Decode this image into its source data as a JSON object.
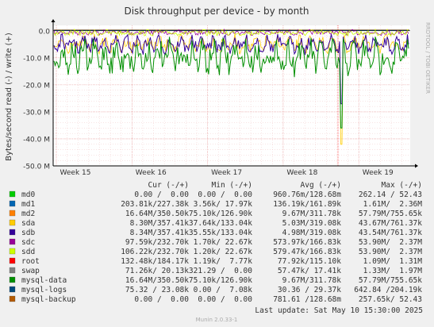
{
  "chart_data": {
    "type": "line",
    "title": "Disk throughput per device - by month",
    "ylabel": "Bytes/second read (-) / write (+)",
    "watermark": "RRDTOOL / TOBI OETIKER",
    "ylim": [
      -50000000,
      2000000
    ],
    "y_ticks": [
      {
        "value": 0,
        "label": "0.0"
      },
      {
        "value": -10000000,
        "label": "-10.0 M"
      },
      {
        "value": -20000000,
        "label": "-20.0 M"
      },
      {
        "value": -30000000,
        "label": "-30.0 M"
      },
      {
        "value": -40000000,
        "label": "-40.0 M"
      },
      {
        "value": -50000000,
        "label": "-50.0 M"
      }
    ],
    "x_ticks": [
      "Week 15",
      "Week 16",
      "Week 17",
      "Week 18",
      "Week 19"
    ],
    "grid": true,
    "series": [
      {
        "name": "md0",
        "color": "#00cc00",
        "cur": "0.00 /  0.00",
        "min": "0.00 /  0.00",
        "avg": "960.76m/128.68m",
        "max": "262.14 / 52.43"
      },
      {
        "name": "md1",
        "color": "#0066b3",
        "cur": "203.81k/227.38k",
        "min": "3.56k/ 17.97k",
        "avg": "136.19k/161.89k",
        "max": "1.61M/  2.36M"
      },
      {
        "name": "md2",
        "color": "#ff8000",
        "cur": "16.64M/350.50k",
        "min": "75.10k/126.90k",
        "avg": "9.67M/311.78k",
        "max": "57.79M/755.65k"
      },
      {
        "name": "sda",
        "color": "#ffcc00",
        "cur": "8.30M/357.41k",
        "min": "37.64k/133.04k",
        "avg": "5.03M/319.08k",
        "max": "43.67M/761.37k"
      },
      {
        "name": "sdb",
        "color": "#330099",
        "cur": "8.34M/357.41k",
        "min": "35.55k/133.04k",
        "avg": "4.98M/319.08k",
        "max": "43.54M/761.37k"
      },
      {
        "name": "sdc",
        "color": "#990099",
        "cur": "97.59k/232.70k",
        "min": "1.70k/ 22.67k",
        "avg": "573.97k/166.83k",
        "max": "53.90M/  2.37M"
      },
      {
        "name": "sdd",
        "color": "#ccff00",
        "cur": "106.22k/232.70k",
        "min": "1.20k/ 22.67k",
        "avg": "579.47k/166.83k",
        "max": "53.90M/  2.37M"
      },
      {
        "name": "root",
        "color": "#ff0000",
        "cur": "132.48k/184.17k",
        "min": "1.19k/  7.77k",
        "avg": "77.92k/115.10k",
        "max": "1.09M/  1.31M"
      },
      {
        "name": "swap",
        "color": "#808080",
        "cur": "71.26k/ 20.13k",
        "min": "321.29 /  0.00",
        "avg": "57.47k/ 17.41k",
        "max": "1.33M/  1.97M"
      },
      {
        "name": "mysql-data",
        "color": "#008f00",
        "cur": "16.64M/350.50k",
        "min": "75.10k/126.90k",
        "avg": "9.67M/311.78k",
        "max": "57.79M/755.65k"
      },
      {
        "name": "mysql-logs",
        "color": "#00487d",
        "cur": "75.32 / 23.08k",
        "min": "0.00 /  7.08k",
        "avg": "30.36 / 29.37k",
        "max": "642.84 /204.19k"
      },
      {
        "name": "mysql-backup",
        "color": "#b35a00",
        "cur": "0.00 /  0.00",
        "min": "0.00 /  0.00",
        "avg": "781.61 /128.68m",
        "max": "257.65k/ 52.43"
      }
    ],
    "legend_headers": {
      "cur": "Cur (-/+)",
      "min": "Min (-/+)",
      "avg": "Avg (-/+)",
      "max": "Max (-/+)"
    },
    "last_update": "Last update:  Sat May 10 15:30:00 2025",
    "footer": "Munin 2.0.33-1"
  }
}
